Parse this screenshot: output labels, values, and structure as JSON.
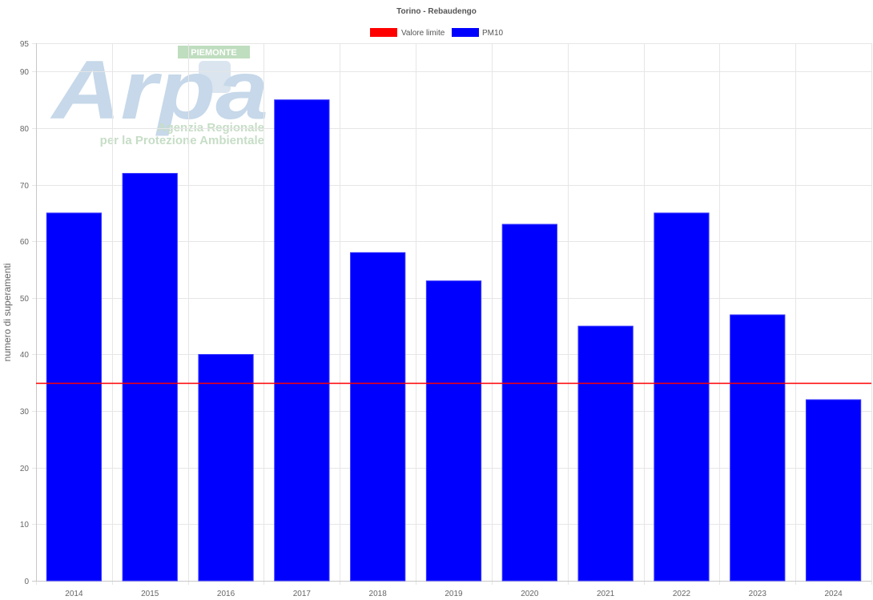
{
  "watermark": {
    "region": "PIEMONTE",
    "name": "Arpa",
    "line1": "Agenzia Regionale",
    "line2": "per la Protezione Ambientale"
  },
  "colors": {
    "bar": "#0000ff",
    "limit": "#ff0000",
    "grid": "#e6e6e6",
    "axis": "#c8c8c8"
  },
  "chart_data": {
    "type": "bar",
    "title": "Torino - Rebaudengo",
    "ylabel": "numero di superamenti",
    "xlabel": "",
    "categories": [
      "2014",
      "2015",
      "2016",
      "2017",
      "2018",
      "2019",
      "2020",
      "2021",
      "2022",
      "2023",
      "2024"
    ],
    "series": [
      {
        "name": "PM10",
        "type": "bar",
        "color": "#0000ff",
        "values": [
          65,
          72,
          40,
          85,
          58,
          53,
          63,
          45,
          65,
          47,
          32
        ]
      },
      {
        "name": "Valore limite",
        "type": "line",
        "color": "#ff0000",
        "value": 35
      }
    ],
    "ylim": [
      0,
      95
    ],
    "yticks": [
      0,
      10,
      20,
      30,
      40,
      50,
      60,
      70,
      80,
      90,
      95
    ],
    "grid": true,
    "legend": "top-center"
  }
}
